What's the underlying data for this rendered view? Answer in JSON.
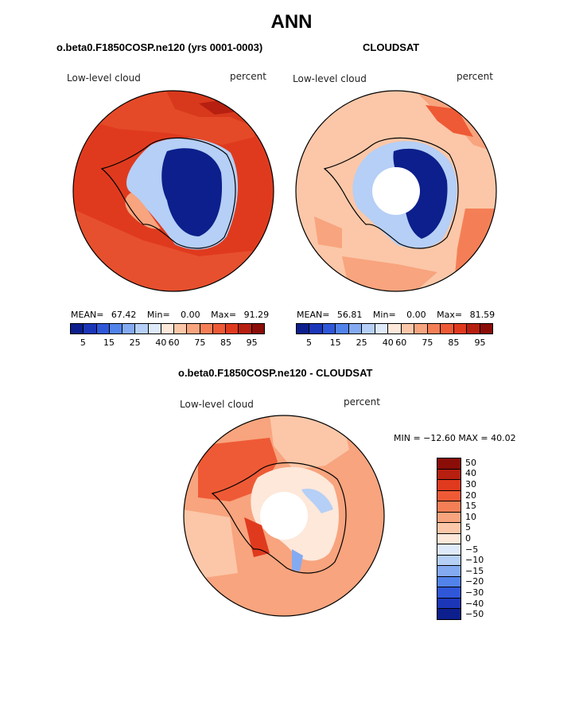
{
  "page": {
    "title": "ANN"
  },
  "panels": [
    {
      "id": "model",
      "subtitle": "o.beta0.F1850COSP.ne120 (yrs 0001-0003)",
      "left_label": "Low-level cloud",
      "right_label": "percent",
      "stats": {
        "mean_label": "MEAN=",
        "mean": "67.42",
        "min_label": "Min=",
        "min": "0.00",
        "max_label": "Max=",
        "max": "91.29"
      }
    },
    {
      "id": "obs",
      "subtitle": "CLOUDSAT",
      "left_label": "Low-level cloud",
      "right_label": "percent",
      "stats": {
        "mean_label": "MEAN=",
        "mean": "56.81",
        "min_label": "Min=",
        "min": "0.00",
        "max_label": "Max=",
        "max": "81.59"
      }
    },
    {
      "id": "diff",
      "subtitle": "o.beta0.F1850COSP.ne120 - CLOUDSAT",
      "left_label": "Low-level cloud",
      "right_label": "percent",
      "minmax": "MIN = −12.60 MAX =  40.02"
    }
  ],
  "colorbar_abs": {
    "colors": [
      "#0c1f8c",
      "#1c36b8",
      "#2f57d8",
      "#5283ea",
      "#84aaf2",
      "#b5cff6",
      "#deeafa",
      "#fde8da",
      "#fbc7a8",
      "#f8a47e",
      "#f47f56",
      "#ee5a35",
      "#e03a1e",
      "#b71f10",
      "#8a0d08"
    ],
    "tick_labels": [
      "5",
      "15",
      "25",
      "40",
      "60",
      "75",
      "85",
      "95"
    ]
  },
  "colorbar_diff": {
    "colors": [
      "#8a0d08",
      "#b71f10",
      "#e03a1e",
      "#ee5a35",
      "#f47f56",
      "#f8a47e",
      "#fbc7a8",
      "#fde8da",
      "#deeafa",
      "#b5cff6",
      "#84aaf2",
      "#5283ea",
      "#2f57d8",
      "#1c36b8",
      "#0c1f8c"
    ],
    "tick_labels": [
      "50",
      "40",
      "30",
      "20",
      "15",
      "10",
      "5",
      "0",
      "−5",
      "−10",
      "−15",
      "−20",
      "−30",
      "−40",
      "−50"
    ]
  }
}
